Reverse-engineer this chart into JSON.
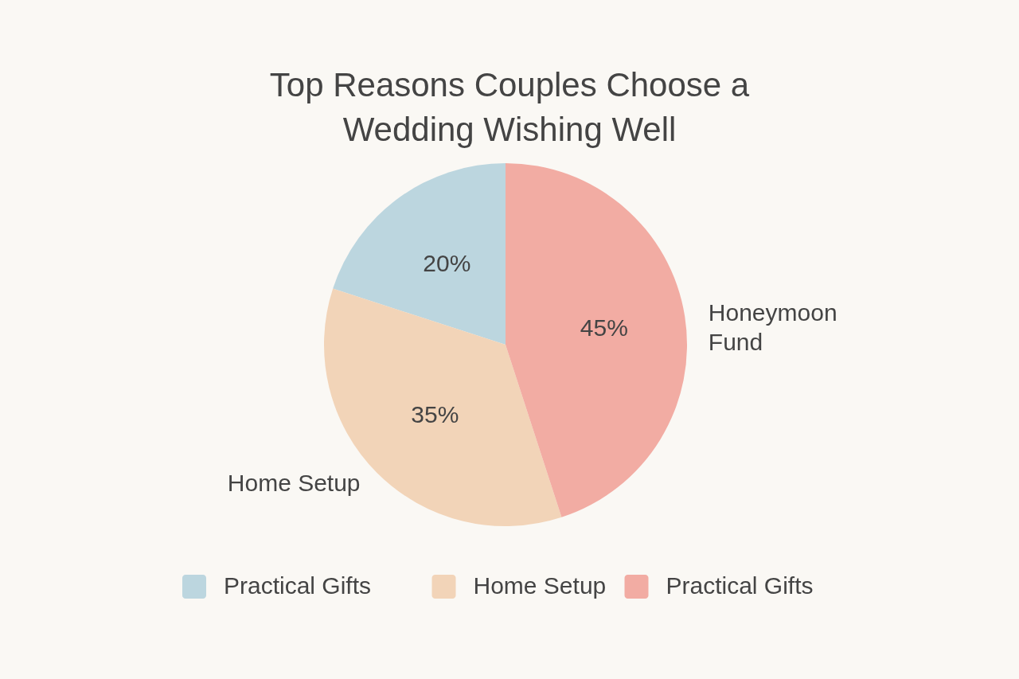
{
  "chart_data": {
    "type": "pie",
    "title": "Top Reasons Couples Choose a Wedding Wishing Well",
    "categories": [
      "Practical Gifts",
      "Home Setup",
      "Practical Gifts"
    ],
    "values": [
      20,
      35,
      45
    ],
    "colors": [
      "#bcd6df",
      "#f2d4b8",
      "#f2aca3"
    ],
    "value_labels": [
      "20%",
      "35%",
      "45%"
    ],
    "annotations": [
      "Home Setup",
      "Honeymoon Fund"
    ],
    "legend": "bottom"
  }
}
